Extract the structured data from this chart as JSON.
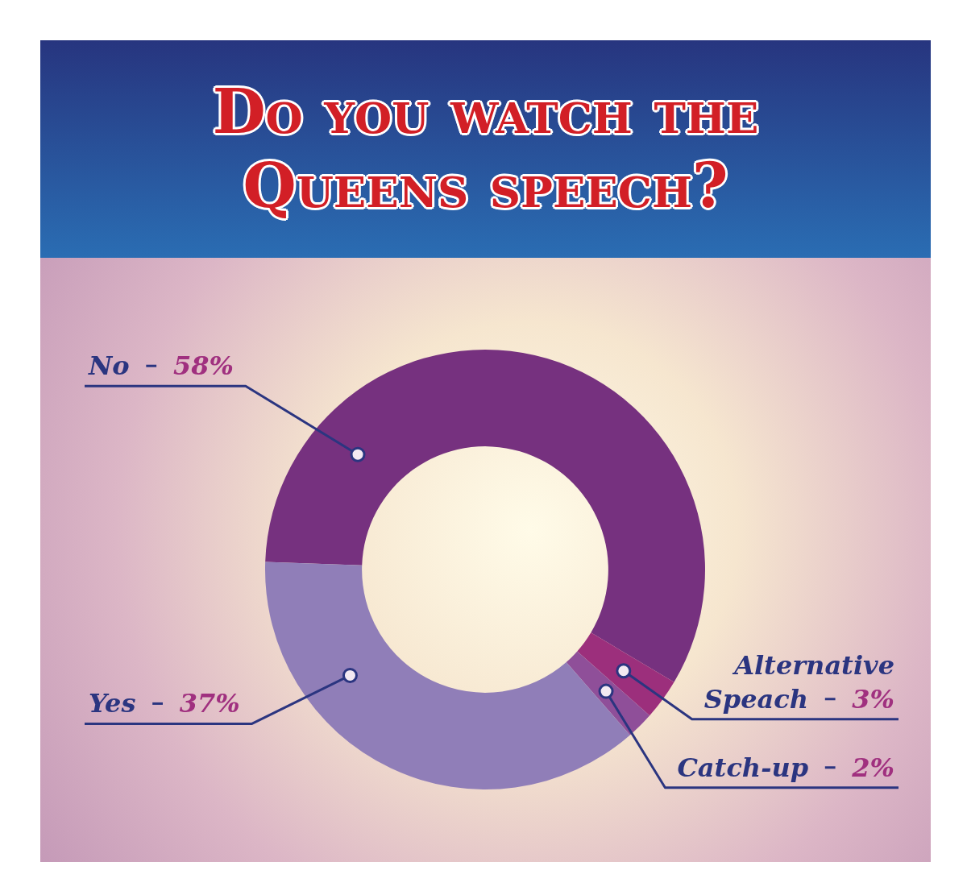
{
  "chart_data": {
    "type": "donut",
    "title": "Do you watch the Queens speech?",
    "categories": [
      "No",
      "Alternative Speach",
      "Catch-up",
      "Yes"
    ],
    "values": [
      58,
      3,
      2,
      37
    ],
    "value_labels": [
      "58%",
      "3%",
      "2%",
      "37%"
    ],
    "colors": [
      "#76317f",
      "#9c2f7c",
      "#8f4f99",
      "#907eb8"
    ]
  }
}
